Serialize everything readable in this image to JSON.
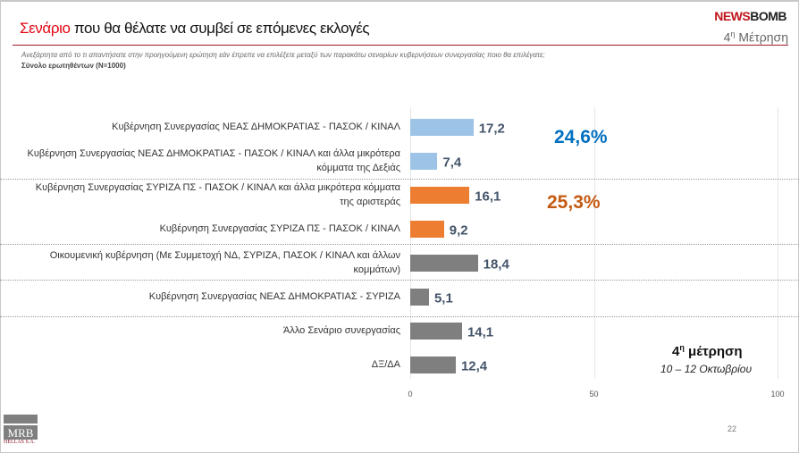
{
  "header": {
    "title_highlight": "Σενάριο",
    "title_rest": " που θα θέλατε να συμβεί σε επόμενες εκλογές",
    "brand_a": "NEWS",
    "brand_b": "BOMB",
    "measurement": "Μέτρηση",
    "measurement_num": "4",
    "measurement_sup": "η",
    "question": "Ανεξάρτητα από το τι απαντήσατε στην προηγούμενη ερώτηση εάν έπρεπε να επιλέξετε μεταξύ των παρακάτω σεναρίων κυβερνήσεων συνεργασίας ποιο θα επιλέγατε;",
    "base": "Σύνολο ερωτηθέντων (Ν=1000)"
  },
  "chart_data": {
    "type": "bar",
    "orientation": "horizontal",
    "categories": [
      "Κυβέρνηση Συνεργασίας ΝΕΑΣ ΔΗΜΟΚΡΑΤΙΑΣ - ΠΑΣΟΚ / ΚΙΝΑΛ",
      "Κυβέρνηση Συνεργασίας ΝΕΑΣ ΔΗΜΟΚΡΑΤΙΑΣ - ΠΑΣΟΚ / ΚΙΝΑΛ και άλλα μικρότερα κόμματα της Δεξιάς",
      "Κυβέρνηση Συνεργασίας ΣΥΡΙΖΑ ΠΣ - ΠΑΣΟΚ / ΚΙΝΑΛ και άλλα μικρότερα κόμματα της αριστεράς",
      "Κυβέρνηση Συνεργασίας ΣΥΡΙΖΑ ΠΣ - ΠΑΣΟΚ / ΚΙΝΑΛ",
      "Οικουμενική κυβέρνηση (Με Συμμετοχή ΝΔ, ΣΥΡΙΖΑ, ΠΑΣΟΚ / ΚΙΝΑΛ και άλλων κομμάτων)",
      "Κυβέρνηση Συνεργασίας ΝΕΑΣ ΔΗΜΟΚΡΑΤΙΑΣ - ΣΥΡΙΖΑ",
      "Άλλο Σενάριο συνεργασίας",
      "ΔΞ/ΔΑ"
    ],
    "values": [
      17.2,
      7.4,
      16.1,
      9.2,
      18.4,
      5.1,
      14.1,
      12.4
    ],
    "value_labels": [
      "17,2",
      "7,4",
      "16,1",
      "9,2",
      "18,4",
      "5,1",
      "14,1",
      "12,4"
    ],
    "bar_colors": [
      "#9dc3e6",
      "#9dc3e6",
      "#ed7d31",
      "#ed7d31",
      "#7f7f7f",
      "#7f7f7f",
      "#7f7f7f",
      "#7f7f7f"
    ],
    "xlim": [
      0,
      100
    ],
    "x_ticks": [
      "0",
      "50",
      "100"
    ],
    "grid": true,
    "group_totals": [
      {
        "label": "24,6%",
        "color": "#0070c0"
      },
      {
        "label": "25,3%",
        "color": "#c55a11"
      }
    ],
    "annotation_title_num": "4",
    "annotation_title_sup": "η",
    "annotation_title": "μέτρηση",
    "annotation_subtitle": "10 – 12 Οκτωβρίου"
  },
  "footer": {
    "logo_text": "MRB",
    "logo_sub": "HELLAS S.A.",
    "page_number": "22"
  }
}
